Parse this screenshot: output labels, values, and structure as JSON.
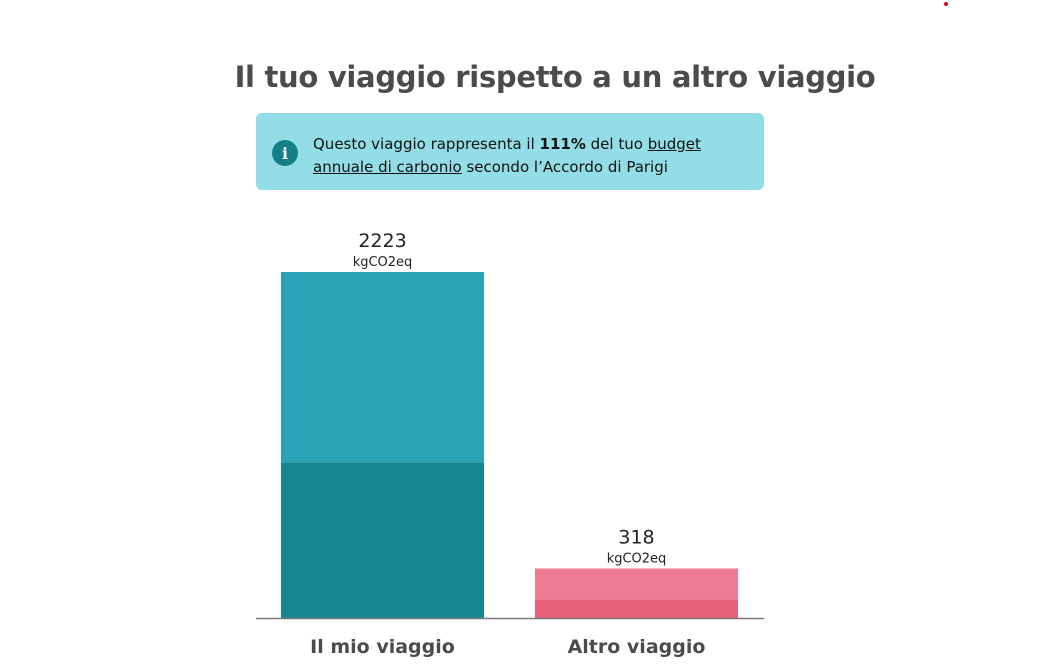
{
  "header": {
    "title": "Il tuo viaggio rispetto a un altro viaggio"
  },
  "info": {
    "icon": "info-icon",
    "text_before": "Questo viaggio rappresenta il ",
    "percent": "111%",
    "text_middle": " del tuo ",
    "link_text": "budget annuale di carbonio",
    "text_after": " secondo l’Accordo di Parigi",
    "background_color": "#93dee6",
    "icon_color": "#157f88"
  },
  "chart_data": {
    "type": "bar",
    "stacked": true,
    "categories": [
      "Il mio viaggio",
      "Altro viaggio"
    ],
    "totals": [
      2223,
      318
    ],
    "total_labels": [
      "2223",
      "318"
    ],
    "unit": "kgCO2eq",
    "segments": [
      {
        "values": [
          1000,
          120
        ],
        "colors": [
          "#168791",
          "#e6607c"
        ]
      },
      {
        "values": [
          1223,
          198
        ],
        "colors": [
          "#2aa5b5",
          "#ee7b91"
        ]
      }
    ],
    "ylim": [
      0,
      2223
    ],
    "grid": false,
    "axis_color": "#7a7a7a"
  }
}
